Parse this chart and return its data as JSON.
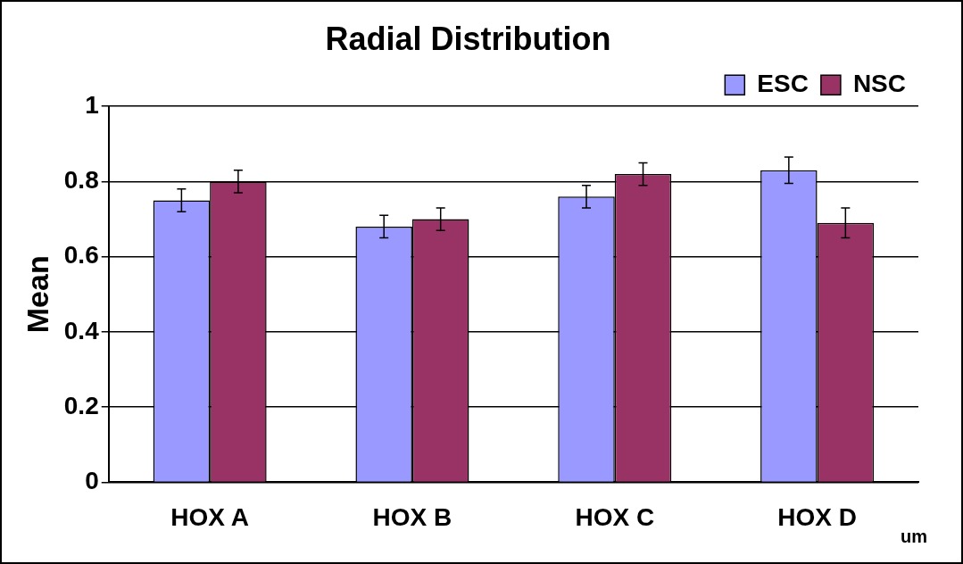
{
  "chart_data": {
    "type": "bar",
    "title": "Radial Distribution",
    "ylabel": "Mean",
    "categories": [
      "HOX A",
      "HOX B",
      "HOX C",
      "HOX D"
    ],
    "series": [
      {
        "name": "ESC",
        "color": "#9999ff",
        "values": [
          0.75,
          0.68,
          0.76,
          0.83
        ],
        "errors": [
          0.03,
          0.03,
          0.03,
          0.035
        ]
      },
      {
        "name": "NSC",
        "color": "#993366",
        "values": [
          0.8,
          0.7,
          0.82,
          0.69
        ],
        "errors": [
          0.03,
          0.03,
          0.03,
          0.04
        ]
      }
    ],
    "ylim": [
      0,
      1
    ],
    "yticks": [
      0,
      0.2,
      0.4,
      0.6,
      0.8,
      1
    ],
    "grid": "y",
    "legend": "top right",
    "annotations": [
      "um"
    ]
  }
}
